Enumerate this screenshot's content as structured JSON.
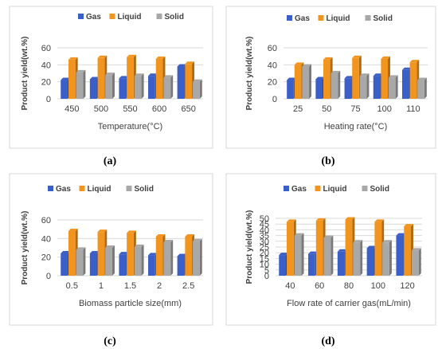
{
  "colors": {
    "gas": "#3b5fc8",
    "liquid": "#f2951e",
    "solid": "#a8a8a8",
    "grid": "#d9d9d9",
    "text": "#404040"
  },
  "chart_data": [
    {
      "panel": "(a)",
      "type": "bar",
      "xlabel": "Temperature(°C)",
      "ylabel": "Product yield(wt.%)",
      "ylim": [
        0,
        60
      ],
      "yticks": [
        0,
        20,
        40,
        60
      ],
      "grid": true,
      "legend_position": "top",
      "categories": [
        "450",
        "500",
        "550",
        "600",
        "650"
      ],
      "series": [
        {
          "name": "Gas",
          "values": [
            22,
            23,
            24,
            27,
            38
          ]
        },
        {
          "name": "Liquid",
          "values": [
            46,
            48,
            49,
            47,
            41
          ]
        },
        {
          "name": "Solid",
          "values": [
            31,
            28,
            27,
            25,
            20
          ]
        }
      ]
    },
    {
      "panel": "(b)",
      "type": "bar",
      "xlabel": "Heating rate(°C)",
      "ylabel": "Product yield(wt.%)",
      "ylim": [
        0,
        60
      ],
      "yticks": [
        0,
        20,
        40,
        60
      ],
      "grid": true,
      "legend_position": "top",
      "categories": [
        "25",
        "50",
        "75",
        "100",
        "110"
      ],
      "series": [
        {
          "name": "Gas",
          "values": [
            22,
            23,
            24,
            27,
            34
          ]
        },
        {
          "name": "Liquid",
          "values": [
            40,
            46,
            48,
            47,
            43
          ]
        },
        {
          "name": "Solid",
          "values": [
            38,
            30,
            27,
            25,
            22
          ]
        }
      ]
    },
    {
      "panel": "(c)",
      "type": "bar",
      "xlabel": "Biomass particle size(mm)",
      "ylabel": "Product yield(wt.%)",
      "ylim": [
        0,
        60
      ],
      "yticks": [
        0,
        20,
        40,
        60
      ],
      "grid": true,
      "legend_position": "top",
      "categories": [
        "0.5",
        "1",
        "1.5",
        "2",
        "2.5"
      ],
      "series": [
        {
          "name": "Gas",
          "values": [
            24,
            24,
            23,
            22,
            21
          ]
        },
        {
          "name": "Liquid",
          "values": [
            48,
            47,
            46,
            42,
            42
          ]
        },
        {
          "name": "Solid",
          "values": [
            28,
            30,
            31,
            36,
            37
          ]
        }
      ]
    },
    {
      "panel": "(d)",
      "type": "bar",
      "xlabel": "Flow rate of carrier gas(mL/min)",
      "ylabel": "Product yield(wt.%)",
      "ylim": [
        0,
        50
      ],
      "yticks": [
        0,
        5,
        10,
        15,
        20,
        25,
        30,
        35,
        40,
        45,
        50
      ],
      "grid": true,
      "legend_position": "top",
      "categories": [
        "40",
        "60",
        "80",
        "100",
        "120"
      ],
      "series": [
        {
          "name": "Gas",
          "values": [
            18,
            19,
            21,
            24,
            35
          ]
        },
        {
          "name": "Liquid",
          "values": [
            47,
            48,
            49,
            47,
            43
          ]
        },
        {
          "name": "Solid",
          "values": [
            35,
            33,
            29,
            29,
            22
          ]
        }
      ]
    }
  ]
}
